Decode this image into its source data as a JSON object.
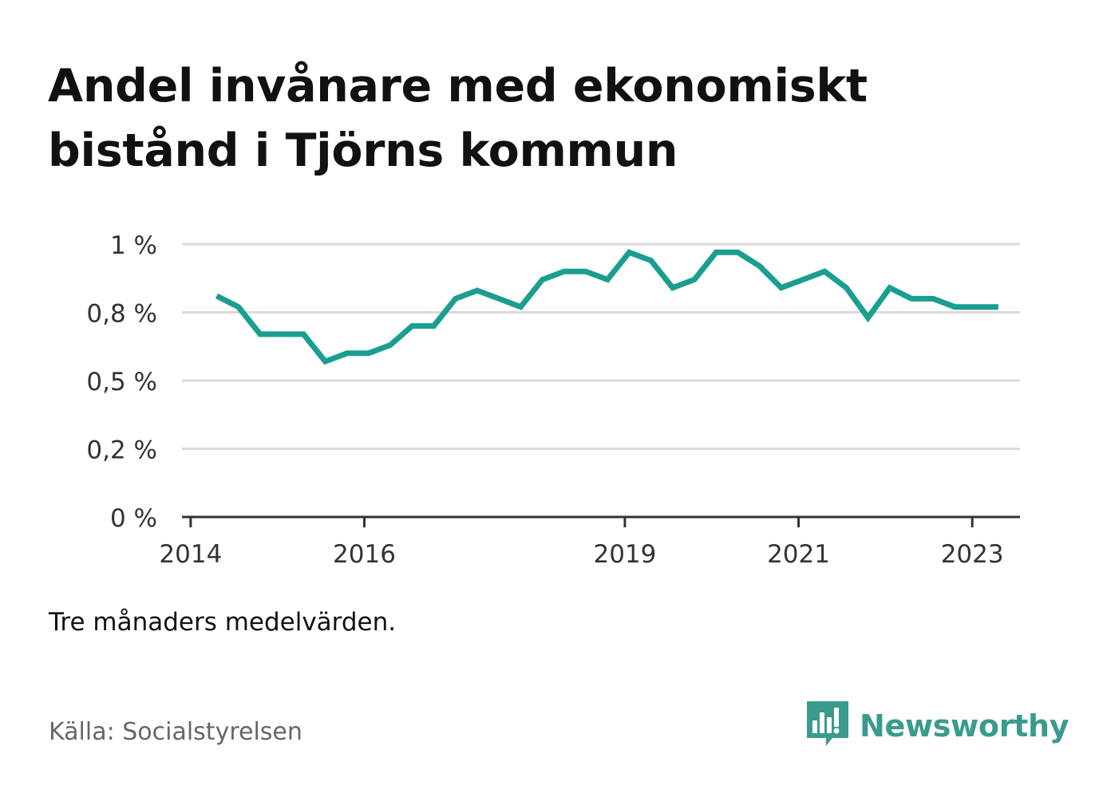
{
  "title": "Andel invånare med ekonomiskt bistånd i Tjörns kommun",
  "note": "Tre månaders medelvärden.",
  "source": "Källa: Socialstyrelsen",
  "brand": "Newsworthy",
  "colors": {
    "line": "#1a9e90",
    "grid": "#d9d9d9",
    "axis": "#333333",
    "brand": "#3a9b8c"
  },
  "chart_data": {
    "type": "line",
    "y_tick_labels": [
      "0 %",
      "0,2 %",
      "0,5 %",
      "0,8 %",
      "1 %"
    ],
    "y_tick_values": [
      0,
      0.25,
      0.5,
      0.75,
      1.0
    ],
    "x_tick_labels": [
      "2014",
      "2016",
      "2019",
      "2021",
      "2023"
    ],
    "x_tick_values": [
      2014.0,
      2016.0,
      2019.0,
      2021.0,
      2023.0
    ],
    "ylim": [
      0,
      1.0
    ],
    "xlim": [
      2013.9,
      2023.55
    ],
    "grid": true,
    "series": [
      {
        "x": [
          2014.3,
          2014.55,
          2014.8,
          2015.05,
          2015.3,
          2015.55,
          2015.8,
          2016.05,
          2016.3,
          2016.55,
          2016.8,
          2017.05,
          2017.3,
          2017.55,
          2017.8,
          2018.05,
          2018.3,
          2018.55,
          2018.8,
          2019.05,
          2019.3,
          2019.55,
          2019.8,
          2020.05,
          2020.3,
          2020.55,
          2020.8,
          2021.05,
          2021.3,
          2021.55,
          2021.8,
          2022.05,
          2022.3,
          2022.55,
          2022.8,
          2023.05,
          2023.3
        ],
        "values": [
          0.81,
          0.77,
          0.67,
          0.67,
          0.67,
          0.57,
          0.6,
          0.6,
          0.63,
          0.7,
          0.7,
          0.8,
          0.83,
          0.8,
          0.77,
          0.87,
          0.9,
          0.9,
          0.87,
          0.97,
          0.94,
          0.84,
          0.87,
          0.97,
          0.97,
          0.92,
          0.84,
          0.87,
          0.9,
          0.84,
          0.73,
          0.84,
          0.8,
          0.8,
          0.77,
          0.77,
          0.77
        ]
      }
    ]
  }
}
